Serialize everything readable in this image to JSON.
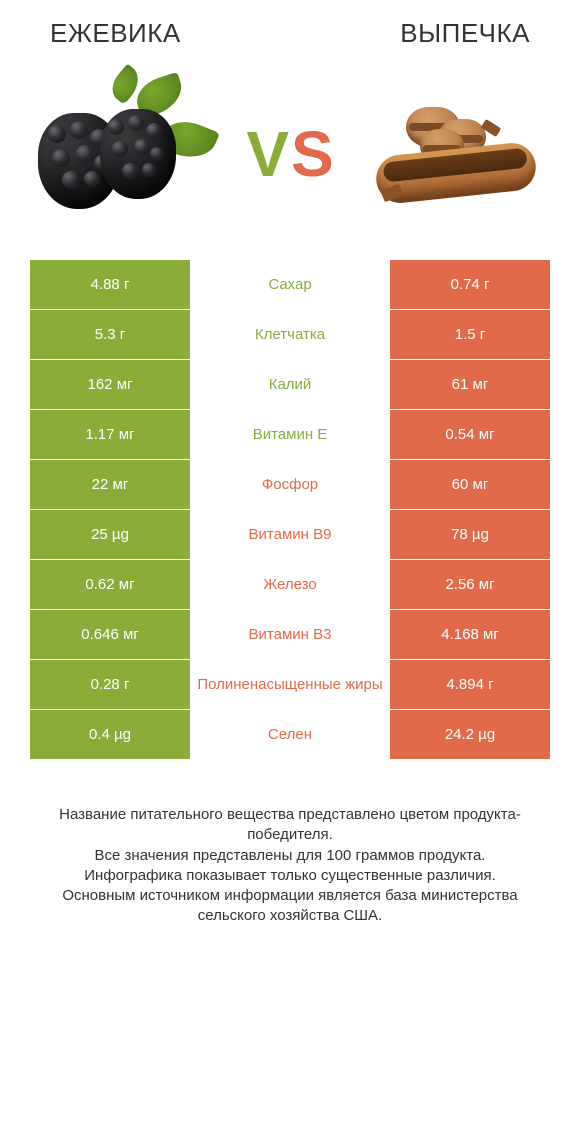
{
  "colors": {
    "green": "#8aad3a",
    "orange": "#e06a4a",
    "bg": "#ffffff",
    "text": "#333333"
  },
  "header": {
    "left_title": "ЕЖЕВИКА",
    "right_title": "ВЫПЕЧКА"
  },
  "vs": {
    "v": "V",
    "s": "S"
  },
  "images": {
    "left_alt": "blackberries",
    "right_alt": "pastries"
  },
  "rows": [
    {
      "left": "4.88 г",
      "mid": "Сахар",
      "right": "0.74 г",
      "winner": "left"
    },
    {
      "left": "5.3 г",
      "mid": "Клетчатка",
      "right": "1.5 г",
      "winner": "left"
    },
    {
      "left": "162 мг",
      "mid": "Калий",
      "right": "61 мг",
      "winner": "left"
    },
    {
      "left": "1.17 мг",
      "mid": "Витамин E",
      "right": "0.54 мг",
      "winner": "left"
    },
    {
      "left": "22 мг",
      "mid": "Фосфор",
      "right": "60 мг",
      "winner": "right"
    },
    {
      "left": "25 µg",
      "mid": "Витамин B9",
      "right": "78 µg",
      "winner": "right"
    },
    {
      "left": "0.62 мг",
      "mid": "Железо",
      "right": "2.56 мг",
      "winner": "right"
    },
    {
      "left": "0.646 мг",
      "mid": "Витамин B3",
      "right": "4.168 мг",
      "winner": "right"
    },
    {
      "left": "0.28 г",
      "mid": "Полиненасыщенные жиры",
      "right": "4.894 г",
      "winner": "right"
    },
    {
      "left": "0.4 µg",
      "mid": "Селен",
      "right": "24.2 µg",
      "winner": "right"
    }
  ],
  "footer": {
    "line1": "Название питательного вещества представлено цветом продукта-победителя.",
    "line2": "Все значения представлены для 100 граммов продукта.",
    "line3": "Инфографика показывает только существенные различия.",
    "line4": "Основным источником информации является база министерства сельского хозяйства США."
  }
}
